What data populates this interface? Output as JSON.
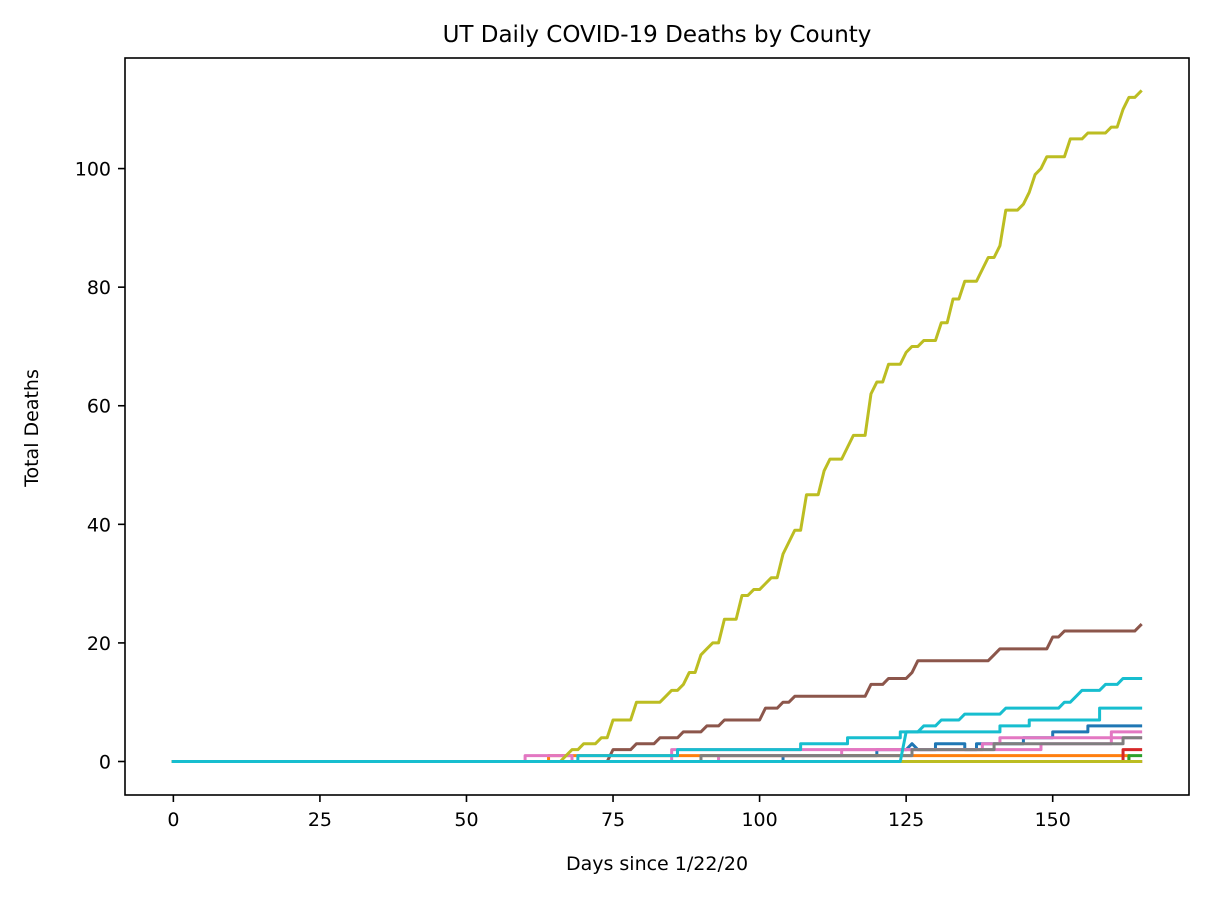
{
  "chart_data": {
    "type": "line",
    "title": "UT Daily COVID-19 Deaths by County",
    "xlabel": "Days since 1/22/20",
    "ylabel": "Total Deaths",
    "xlim": [
      -8.25,
      173.25
    ],
    "ylim": [
      -5.65,
      118.65
    ],
    "xticks": [
      0,
      25,
      50,
      75,
      100,
      125,
      150
    ],
    "yticks": [
      0,
      20,
      40,
      60,
      80,
      100
    ],
    "grid": false,
    "legend": "none",
    "series": [
      {
        "color": "#1f77b4",
        "points": [
          [
            0,
            0
          ],
          [
            104,
            0
          ],
          [
            104,
            1
          ],
          [
            120,
            1
          ],
          [
            120,
            2
          ],
          [
            125,
            2
          ],
          [
            126,
            3
          ],
          [
            127,
            2
          ],
          [
            130,
            2
          ],
          [
            130,
            3
          ],
          [
            135,
            3
          ],
          [
            135,
            2
          ],
          [
            137,
            2
          ],
          [
            137,
            3
          ],
          [
            145,
            3
          ],
          [
            145,
            4
          ],
          [
            150,
            4
          ],
          [
            150,
            5
          ],
          [
            156,
            5
          ],
          [
            156,
            6
          ],
          [
            165,
            6
          ]
        ]
      },
      {
        "color": "#ff7f0e",
        "points": [
          [
            0,
            0
          ],
          [
            64,
            0
          ],
          [
            64,
            1
          ],
          [
            163,
            1
          ],
          [
            163,
            0
          ],
          [
            165,
            0
          ]
        ]
      },
      {
        "color": "#2ca02c",
        "points": [
          [
            0,
            0
          ],
          [
            163,
            0
          ],
          [
            163,
            1
          ],
          [
            165,
            1
          ]
        ]
      },
      {
        "color": "#d62728",
        "points": [
          [
            0,
            0
          ],
          [
            162,
            0
          ],
          [
            162,
            2
          ],
          [
            165,
            2
          ]
        ]
      },
      {
        "color": "#9467bd",
        "points": [
          [
            0,
            0
          ],
          [
            165,
            0
          ]
        ]
      },
      {
        "color": "#8c564b",
        "points": [
          [
            0,
            0
          ],
          [
            74,
            0
          ],
          [
            75,
            2
          ],
          [
            78,
            2
          ],
          [
            79,
            3
          ],
          [
            82,
            3
          ],
          [
            83,
            4
          ],
          [
            86,
            4
          ],
          [
            87,
            5
          ],
          [
            90,
            5
          ],
          [
            91,
            6
          ],
          [
            93,
            6
          ],
          [
            94,
            7
          ],
          [
            100,
            7
          ],
          [
            101,
            9
          ],
          [
            103,
            9
          ],
          [
            104,
            10
          ],
          [
            105,
            10
          ],
          [
            106,
            11
          ],
          [
            118,
            11
          ],
          [
            119,
            13
          ],
          [
            121,
            13
          ],
          [
            122,
            14
          ],
          [
            125,
            14
          ],
          [
            126,
            15
          ],
          [
            127,
            17
          ],
          [
            139,
            17
          ],
          [
            140,
            18
          ],
          [
            141,
            19
          ],
          [
            149,
            19
          ],
          [
            150,
            21
          ],
          [
            151,
            21
          ],
          [
            152,
            22
          ],
          [
            164,
            22
          ],
          [
            165,
            23
          ]
        ]
      },
      {
        "color": "#e377c2",
        "points": [
          [
            0,
            0
          ],
          [
            60,
            0
          ],
          [
            60,
            1
          ],
          [
            68,
            1
          ],
          [
            68,
            0
          ],
          [
            85,
            0
          ],
          [
            85,
            2
          ],
          [
            148,
            2
          ],
          [
            148,
            3
          ],
          [
            160,
            3
          ],
          [
            160,
            5
          ],
          [
            165,
            5
          ]
        ]
      },
      {
        "color": "#e377c2",
        "points": [
          [
            0,
            0
          ],
          [
            93,
            0
          ],
          [
            93,
            1
          ],
          [
            114,
            1
          ],
          [
            114,
            2
          ],
          [
            138,
            2
          ],
          [
            138,
            3
          ],
          [
            141,
            3
          ],
          [
            141,
            4
          ],
          [
            165,
            4
          ]
        ]
      },
      {
        "color": "#7f7f7f",
        "points": [
          [
            0,
            0
          ],
          [
            90,
            0
          ],
          [
            90,
            1
          ],
          [
            126,
            1
          ],
          [
            126,
            2
          ],
          [
            140,
            2
          ],
          [
            140,
            3
          ],
          [
            162,
            3
          ],
          [
            162,
            4
          ],
          [
            165,
            4
          ]
        ]
      },
      {
        "color": "#bcbd22",
        "points": [
          [
            0,
            0
          ],
          [
            66,
            0
          ],
          [
            67,
            1
          ],
          [
            68,
            2
          ],
          [
            69,
            2
          ],
          [
            70,
            3
          ],
          [
            72,
            3
          ],
          [
            73,
            4
          ],
          [
            74,
            4
          ],
          [
            75,
            7
          ],
          [
            78,
            7
          ],
          [
            79,
            10
          ],
          [
            83,
            10
          ],
          [
            84,
            11
          ],
          [
            85,
            12
          ],
          [
            86,
            12
          ],
          [
            87,
            13
          ],
          [
            88,
            15
          ],
          [
            89,
            15
          ],
          [
            90,
            18
          ],
          [
            91,
            19
          ],
          [
            92,
            20
          ],
          [
            93,
            20
          ],
          [
            94,
            24
          ],
          [
            96,
            24
          ],
          [
            97,
            28
          ],
          [
            98,
            28
          ],
          [
            99,
            29
          ],
          [
            100,
            29
          ],
          [
            101,
            30
          ],
          [
            102,
            31
          ],
          [
            103,
            31
          ],
          [
            104,
            35
          ],
          [
            105,
            37
          ],
          [
            106,
            39
          ],
          [
            107,
            39
          ],
          [
            108,
            45
          ],
          [
            110,
            45
          ],
          [
            111,
            49
          ],
          [
            112,
            51
          ],
          [
            114,
            51
          ],
          [
            115,
            53
          ],
          [
            116,
            55
          ],
          [
            118,
            55
          ],
          [
            119,
            62
          ],
          [
            120,
            64
          ],
          [
            121,
            64
          ],
          [
            122,
            67
          ],
          [
            124,
            67
          ],
          [
            125,
            69
          ],
          [
            126,
            70
          ],
          [
            127,
            70
          ],
          [
            128,
            71
          ],
          [
            130,
            71
          ],
          [
            131,
            74
          ],
          [
            132,
            74
          ],
          [
            133,
            78
          ],
          [
            134,
            78
          ],
          [
            135,
            81
          ],
          [
            137,
            81
          ],
          [
            138,
            83
          ],
          [
            139,
            85
          ],
          [
            140,
            85
          ],
          [
            141,
            87
          ],
          [
            142,
            93
          ],
          [
            144,
            93
          ],
          [
            145,
            94
          ],
          [
            146,
            96
          ],
          [
            147,
            99
          ],
          [
            148,
            100
          ],
          [
            149,
            102
          ],
          [
            152,
            102
          ],
          [
            153,
            105
          ],
          [
            155,
            105
          ],
          [
            156,
            106
          ],
          [
            159,
            106
          ],
          [
            160,
            107
          ],
          [
            161,
            107
          ],
          [
            162,
            110
          ],
          [
            163,
            112
          ],
          [
            164,
            112
          ],
          [
            165,
            113
          ]
        ]
      },
      {
        "color": "#bcbd22",
        "points": [
          [
            0,
            0
          ],
          [
            165,
            0
          ]
        ]
      },
      {
        "color": "#17becf",
        "points": [
          [
            0,
            0
          ],
          [
            69,
            0
          ],
          [
            69,
            1
          ],
          [
            86,
            1
          ],
          [
            86,
            2
          ],
          [
            107,
            2
          ],
          [
            107,
            3
          ],
          [
            115,
            3
          ],
          [
            115,
            4
          ],
          [
            124,
            4
          ],
          [
            124,
            5
          ],
          [
            141,
            5
          ],
          [
            141,
            6
          ],
          [
            146,
            6
          ],
          [
            146,
            7
          ],
          [
            158,
            7
          ],
          [
            158,
            9
          ],
          [
            165,
            9
          ]
        ]
      },
      {
        "color": "#17becf",
        "points": [
          [
            0,
            0
          ],
          [
            124,
            0
          ],
          [
            125,
            5
          ],
          [
            127,
            5
          ],
          [
            128,
            6
          ],
          [
            130,
            6
          ],
          [
            131,
            7
          ],
          [
            134,
            7
          ],
          [
            135,
            8
          ],
          [
            141,
            8
          ],
          [
            142,
            9
          ],
          [
            151,
            9
          ],
          [
            152,
            10
          ],
          [
            153,
            10
          ],
          [
            154,
            11
          ],
          [
            155,
            12
          ],
          [
            158,
            12
          ],
          [
            159,
            13
          ],
          [
            161,
            13
          ],
          [
            162,
            14
          ],
          [
            165,
            14
          ]
        ]
      }
    ]
  }
}
